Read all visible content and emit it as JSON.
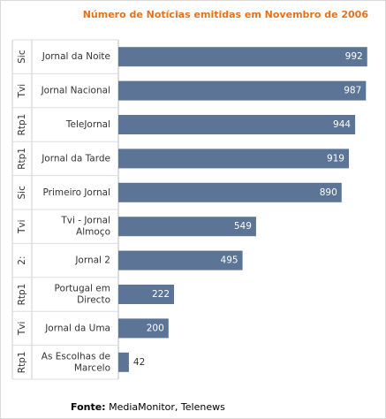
{
  "chart_data": {
    "type": "bar",
    "orientation": "horizontal",
    "title": "Número de Notícias emitidas em Novembro de 2006",
    "source_label": "Fonte:",
    "source_value": "MediaMonitor, Telenews",
    "categories": [
      {
        "group": "Sic",
        "label": [
          "Jornal da Noite"
        ]
      },
      {
        "group": "Tvi",
        "label": [
          "Jornal Nacional"
        ]
      },
      {
        "group": "Rtp1",
        "label": [
          "TeleJornal"
        ]
      },
      {
        "group": "Rtp1",
        "label": [
          "Jornal da Tarde"
        ]
      },
      {
        "group": "Sic",
        "label": [
          "Primeiro Jornal"
        ]
      },
      {
        "group": "Tvi",
        "label": [
          "Tvi - Jornal",
          "Almoço"
        ]
      },
      {
        "group": "2:",
        "label": [
          "Jornal 2"
        ]
      },
      {
        "group": "Rtp1",
        "label": [
          "Portugal em",
          "Directo"
        ]
      },
      {
        "group": "Tvi",
        "label": [
          "Jornal da Uma"
        ]
      },
      {
        "group": "Rtp1",
        "label": [
          "As Escolhas de",
          "Marcelo"
        ]
      }
    ],
    "values": [
      992,
      987,
      944,
      919,
      890,
      549,
      495,
      222,
      200,
      42
    ],
    "xlim": [
      0,
      1000
    ],
    "bar_color": "#5c7596",
    "grid": false
  }
}
